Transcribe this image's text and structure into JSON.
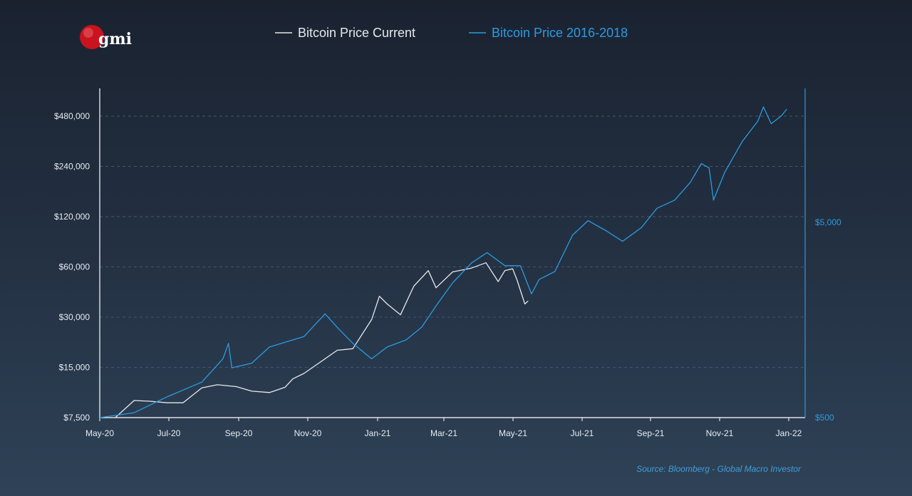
{
  "logo": {
    "text": "gmi",
    "colors": {
      "sphere": "#c8141e",
      "text": "#ffffff"
    }
  },
  "source_note": "Source: Bloomberg - Global Macro Investor",
  "colors": {
    "current": "#e6e9ee",
    "historical": "#2b9be0",
    "grid": "#44566b",
    "axis": "#ffffff"
  },
  "chart_data": {
    "type": "line",
    "title": "",
    "xlabel": "",
    "ylabel": "",
    "x_tick_labels": [
      "May-20",
      "Jul-20",
      "Sep-20",
      "Nov-20",
      "Jan-21",
      "Mar-21",
      "May-21",
      "Jul-21",
      "Sep-21",
      "Nov-21",
      "Jan-22"
    ],
    "x_start": "2020-05-01",
    "x_end": "2022-01-15",
    "y_left": {
      "scale": "log",
      "ticks": [
        "$7,500",
        "$15,000",
        "$30,000",
        "$60,000",
        "$120,000",
        "$240,000",
        "$480,000"
      ],
      "tick_values": [
        7500,
        15000,
        30000,
        60000,
        120000,
        240000,
        480000
      ],
      "range": [
        7500,
        640000
      ]
    },
    "y_right": {
      "scale": "log",
      "ticks": [
        "$500",
        "$5,000"
      ],
      "tick_values": [
        500,
        5000
      ],
      "range": [
        500,
        30000
      ]
    },
    "legend": {
      "placement": "top-center",
      "entries": [
        "Bitcoin Price Current",
        "Bitcoin Price 2016-2018"
      ]
    },
    "grid": true,
    "series": [
      {
        "name": "Bitcoin Price Current",
        "axis": "left",
        "points": [
          [
            "2020-05-15",
            7500
          ],
          [
            "2020-06-01",
            9500
          ],
          [
            "2020-06-15",
            9400
          ],
          [
            "2020-07-01",
            9200
          ],
          [
            "2020-07-15",
            9200
          ],
          [
            "2020-08-01",
            11300
          ],
          [
            "2020-08-15",
            11800
          ],
          [
            "2020-09-01",
            11500
          ],
          [
            "2020-09-15",
            10800
          ],
          [
            "2020-10-01",
            10600
          ],
          [
            "2020-10-15",
            11400
          ],
          [
            "2020-10-22",
            12800
          ],
          [
            "2020-11-01",
            13800
          ],
          [
            "2020-11-15",
            16000
          ],
          [
            "2020-12-01",
            19000
          ],
          [
            "2020-12-15",
            19400
          ],
          [
            "2021-01-01",
            29000
          ],
          [
            "2021-01-08",
            40000
          ],
          [
            "2021-01-15",
            36000
          ],
          [
            "2021-01-27",
            31000
          ],
          [
            "2021-02-08",
            46000
          ],
          [
            "2021-02-21",
            57000
          ],
          [
            "2021-02-28",
            45000
          ],
          [
            "2021-03-15",
            56000
          ],
          [
            "2021-04-01",
            59000
          ],
          [
            "2021-04-14",
            63500
          ],
          [
            "2021-04-25",
            49000
          ],
          [
            "2021-05-01",
            57000
          ],
          [
            "2021-05-08",
            58500
          ],
          [
            "2021-05-12",
            50000
          ],
          [
            "2021-05-19",
            36000
          ],
          [
            "2021-05-22",
            37500
          ]
        ]
      },
      {
        "name": "Bitcoin Price 2016-2018",
        "axis": "right",
        "points": [
          [
            "2020-05-01",
            420
          ],
          [
            "2020-06-01",
            530
          ],
          [
            "2020-07-01",
            640
          ],
          [
            "2020-08-01",
            760
          ],
          [
            "2020-08-20",
            1000
          ],
          [
            "2020-08-25",
            1200
          ],
          [
            "2020-08-28",
            900
          ],
          [
            "2020-09-15",
            950
          ],
          [
            "2020-10-01",
            1150
          ],
          [
            "2020-11-01",
            1300
          ],
          [
            "2020-11-20",
            1700
          ],
          [
            "2020-12-01",
            1450
          ],
          [
            "2020-12-15",
            1200
          ],
          [
            "2021-01-01",
            1000
          ],
          [
            "2021-01-15",
            1150
          ],
          [
            "2021-02-01",
            1250
          ],
          [
            "2021-02-15",
            1450
          ],
          [
            "2021-03-01",
            1900
          ],
          [
            "2021-03-15",
            2450
          ],
          [
            "2021-04-01",
            3100
          ],
          [
            "2021-04-15",
            3500
          ],
          [
            "2021-05-01",
            3000
          ],
          [
            "2021-05-15",
            3000
          ],
          [
            "2021-05-25",
            2150
          ],
          [
            "2021-06-01",
            2550
          ],
          [
            "2021-06-15",
            2800
          ],
          [
            "2021-07-01",
            4300
          ],
          [
            "2021-07-15",
            5100
          ],
          [
            "2021-08-01",
            4500
          ],
          [
            "2021-08-15",
            4000
          ],
          [
            "2021-09-01",
            4700
          ],
          [
            "2021-09-15",
            5900
          ],
          [
            "2021-10-01",
            6500
          ],
          [
            "2021-10-15",
            8000
          ],
          [
            "2021-10-25",
            10000
          ],
          [
            "2021-11-01",
            9500
          ],
          [
            "2021-11-05",
            6500
          ],
          [
            "2021-11-15",
            9000
          ],
          [
            "2021-12-01",
            13000
          ],
          [
            "2021-12-15",
            16500
          ],
          [
            "2021-12-20",
            19500
          ],
          [
            "2021-12-27",
            16000
          ],
          [
            "2022-01-05",
            17500
          ],
          [
            "2022-01-10",
            19000
          ]
        ]
      }
    ]
  }
}
